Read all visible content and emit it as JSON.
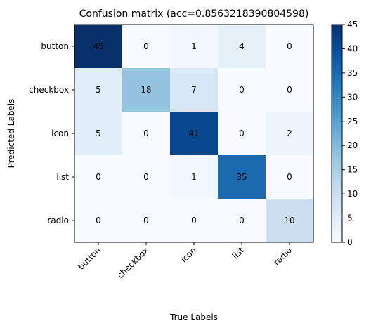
{
  "chart_data": {
    "type": "heatmap",
    "title": "Confusion matrix (acc=0.8563218390804598)",
    "xlabel": "True Labels",
    "ylabel": "Predicted Labels",
    "x_categories": [
      "button",
      "checkbox",
      "icon",
      "list",
      "radio"
    ],
    "y_categories": [
      "button",
      "checkbox",
      "icon",
      "list",
      "radio"
    ],
    "values": [
      [
        45,
        0,
        1,
        4,
        0
      ],
      [
        5,
        18,
        7,
        0,
        0
      ],
      [
        5,
        0,
        41,
        0,
        2
      ],
      [
        0,
        0,
        1,
        35,
        0
      ],
      [
        0,
        0,
        0,
        0,
        10
      ]
    ],
    "colorbar": {
      "min": 0,
      "max": 45,
      "ticks": [
        0,
        5,
        10,
        15,
        20,
        25,
        30,
        35,
        40,
        45
      ]
    },
    "colormap": "Blues",
    "grid": false,
    "legend": "colorbar-right"
  }
}
